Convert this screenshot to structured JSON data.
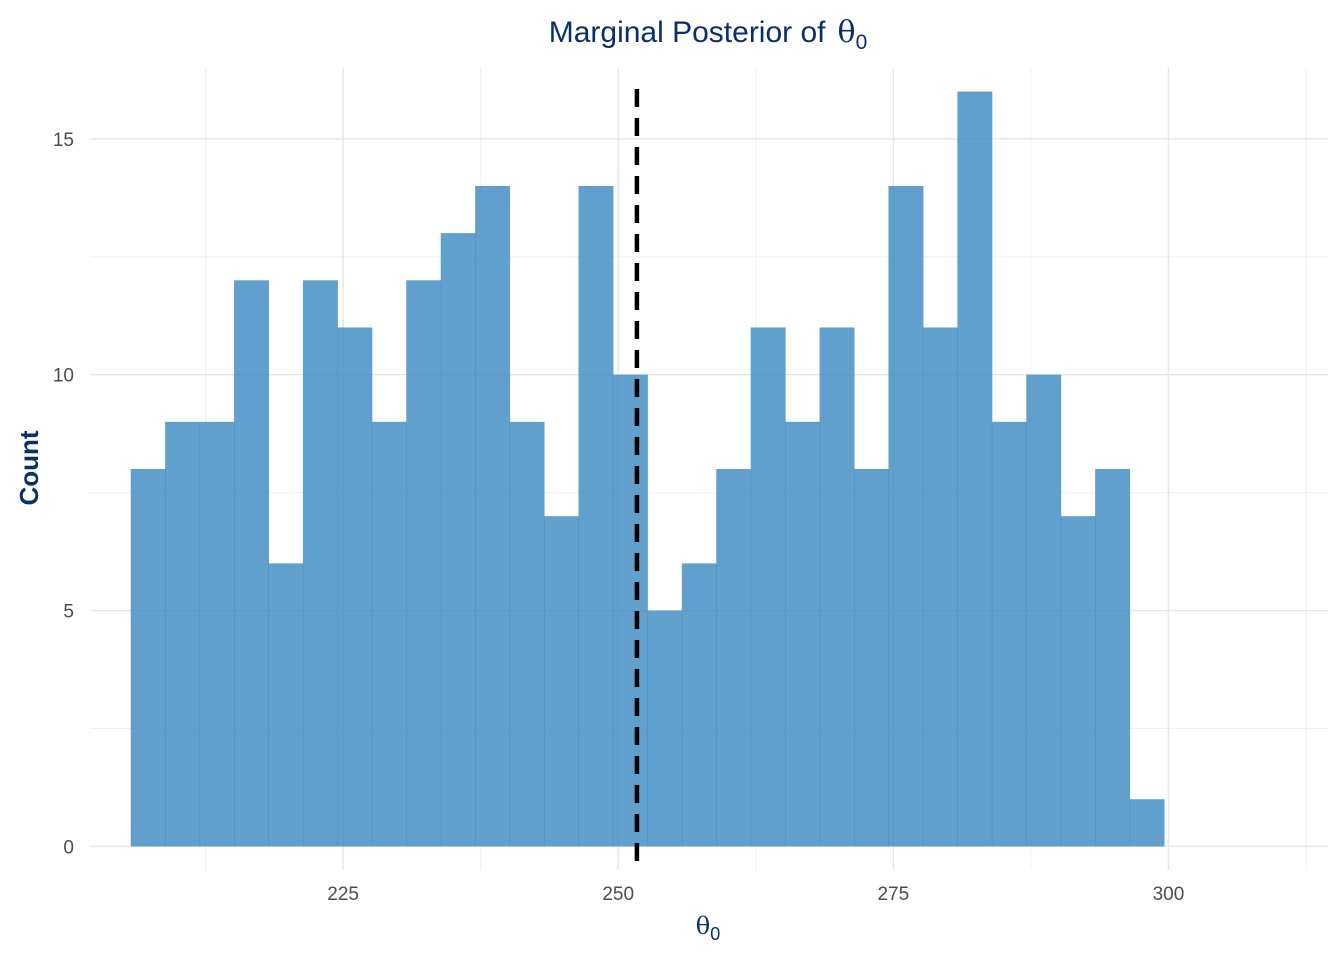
{
  "chart_data": {
    "type": "bar",
    "subtype": "histogram",
    "title": "Marginal Posterior of",
    "title_symbol": "θ",
    "title_subscript": "0",
    "xlabel_symbol": "θ",
    "xlabel_subscript": "0",
    "ylabel": "Count",
    "xlim": [
      202,
      314.5
    ],
    "ylim": [
      -0.5,
      16.5
    ],
    "x_ticks": [
      225,
      250,
      275,
      300
    ],
    "x_tick_labels": [
      "225",
      "250",
      "275",
      "300"
    ],
    "y_ticks": [
      0,
      5,
      10,
      15
    ],
    "y_tick_labels": [
      "0",
      "5",
      "10",
      "15"
    ],
    "bin_width": 3.13,
    "bin_start": 205.7,
    "counts": [
      8,
      9,
      9,
      12,
      6,
      12,
      11,
      9,
      12,
      13,
      14,
      9,
      7,
      14,
      10,
      5,
      6,
      8,
      11,
      9,
      11,
      8,
      14,
      11,
      16,
      9,
      10,
      7,
      8,
      1
    ],
    "reference_line": {
      "x": 251.7,
      "style": "dashed",
      "color": "#000000"
    },
    "bar_color": "#3a88c0",
    "grid": true,
    "legend": "none"
  }
}
